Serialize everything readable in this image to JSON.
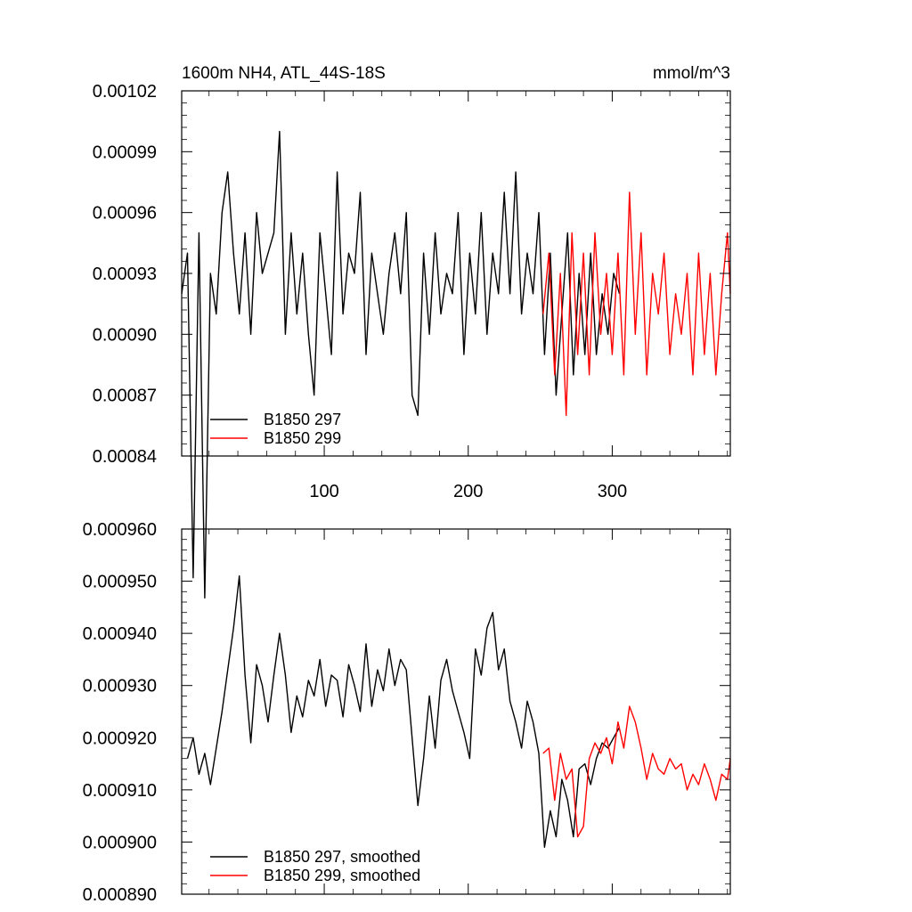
{
  "chart_data": [
    {
      "type": "line",
      "title": "1600m NH4, ATL_44S-18S",
      "units": "mmol/m^3",
      "xlim": [
        1,
        382
      ],
      "ylim": [
        0.00084,
        0.00102
      ],
      "xticks": [
        100,
        200,
        300
      ],
      "xtick_labels": [
        "100",
        "200",
        "300"
      ],
      "yticks": [
        0.00084,
        0.00087,
        0.0009,
        0.00093,
        0.00096,
        0.00099,
        0.00102
      ],
      "ytick_labels": [
        "0.00084",
        "0.00087",
        "0.00090",
        "0.00093",
        "0.00096",
        "0.00099",
        "0.00102"
      ],
      "grid": false,
      "legend_position": "bottom-left",
      "series": [
        {
          "name": "B1850 297",
          "color": "#000000",
          "x": [
            1,
            5,
            9,
            13,
            17,
            21,
            25,
            29,
            33,
            37,
            41,
            45,
            49,
            53,
            57,
            61,
            65,
            69,
            73,
            77,
            81,
            85,
            89,
            93,
            97,
            101,
            105,
            109,
            113,
            117,
            121,
            125,
            129,
            133,
            137,
            141,
            145,
            149,
            153,
            157,
            161,
            165,
            169,
            173,
            177,
            181,
            185,
            189,
            193,
            197,
            201,
            205,
            209,
            213,
            217,
            221,
            225,
            229,
            233,
            237,
            241,
            245,
            249,
            253,
            257,
            261,
            265,
            269,
            273,
            277,
            281,
            285,
            289,
            293,
            297,
            301,
            305
          ],
          "values": [
            0.00092,
            0.00094,
            0.00078,
            0.00095,
            0.00077,
            0.00093,
            0.00091,
            0.00096,
            0.00098,
            0.00094,
            0.00091,
            0.00095,
            0.0009,
            0.00096,
            0.00093,
            0.00094,
            0.00095,
            0.001,
            0.0009,
            0.00095,
            0.00091,
            0.00094,
            0.0009,
            0.00087,
            0.00095,
            0.00092,
            0.00089,
            0.00098,
            0.00091,
            0.00094,
            0.00093,
            0.00097,
            0.00089,
            0.00094,
            0.00092,
            0.0009,
            0.00093,
            0.00095,
            0.00092,
            0.00096,
            0.00087,
            0.00086,
            0.00094,
            0.0009,
            0.00095,
            0.00091,
            0.00093,
            0.00092,
            0.00096,
            0.00089,
            0.00094,
            0.00091,
            0.00096,
            0.0009,
            0.00094,
            0.00092,
            0.00097,
            0.00092,
            0.00098,
            0.00091,
            0.00094,
            0.00092,
            0.00096,
            0.00089,
            0.00094,
            0.00087,
            0.00091,
            0.00095,
            0.00088,
            0.00093,
            0.00089,
            0.00094,
            0.00089,
            0.00092,
            0.0009,
            0.00093,
            0.00092
          ]
        },
        {
          "name": "B1850 299",
          "color": "#ff0000",
          "x": [
            252,
            256,
            260,
            264,
            268,
            272,
            276,
            280,
            284,
            288,
            292,
            296,
            300,
            304,
            308,
            312,
            316,
            320,
            324,
            328,
            332,
            336,
            340,
            344,
            348,
            352,
            356,
            360,
            364,
            368,
            372,
            376,
            380,
            382
          ],
          "values": [
            0.00091,
            0.00094,
            0.00088,
            0.00093,
            0.00086,
            0.00095,
            0.00089,
            0.00094,
            0.00088,
            0.00095,
            0.0009,
            0.00093,
            0.00089,
            0.00094,
            0.00088,
            0.00097,
            0.0009,
            0.00095,
            0.00088,
            0.00093,
            0.00091,
            0.00094,
            0.00089,
            0.00092,
            0.0009,
            0.00093,
            0.00088,
            0.00094,
            0.00089,
            0.00093,
            0.00088,
            0.00092,
            0.00095,
            0.00092
          ]
        }
      ]
    },
    {
      "type": "line",
      "xlim": [
        1,
        382
      ],
      "ylim": [
        0.00089,
        0.00096
      ],
      "xticks": [
        100,
        200,
        300
      ],
      "yticks": [
        0.00089,
        0.0009,
        0.00091,
        0.00092,
        0.00093,
        0.00094,
        0.00095,
        0.00096
      ],
      "ytick_labels": [
        "0.000890",
        "0.000900",
        "0.000910",
        "0.000920",
        "0.000930",
        "0.000940",
        "0.000950",
        "0.000960"
      ],
      "grid": false,
      "legend_position": "bottom-left",
      "series": [
        {
          "name": "B1850 297, smoothed",
          "color": "#000000",
          "x": [
            5,
            9,
            13,
            17,
            21,
            25,
            29,
            33,
            37,
            41,
            45,
            49,
            53,
            57,
            61,
            65,
            69,
            73,
            77,
            81,
            85,
            89,
            93,
            97,
            101,
            105,
            109,
            113,
            117,
            121,
            125,
            129,
            133,
            137,
            141,
            145,
            149,
            153,
            157,
            161,
            165,
            169,
            173,
            177,
            181,
            185,
            189,
            193,
            197,
            201,
            205,
            209,
            213,
            217,
            221,
            225,
            229,
            233,
            237,
            241,
            245,
            249,
            253,
            257,
            261,
            265,
            269,
            273,
            277,
            281,
            285,
            289,
            293,
            297,
            301,
            305
          ],
          "values": [
            0.000916,
            0.00092,
            0.000913,
            0.000917,
            0.000911,
            0.000918,
            0.000925,
            0.000933,
            0.000941,
            0.000951,
            0.000932,
            0.000919,
            0.000934,
            0.00093,
            0.000923,
            0.000932,
            0.00094,
            0.000932,
            0.000921,
            0.000928,
            0.000924,
            0.000931,
            0.000928,
            0.000935,
            0.000926,
            0.000932,
            0.000931,
            0.000924,
            0.000934,
            0.00093,
            0.000925,
            0.000938,
            0.000926,
            0.000933,
            0.000929,
            0.000937,
            0.00093,
            0.000935,
            0.000933,
            0.00092,
            0.000907,
            0.000916,
            0.000928,
            0.000918,
            0.000931,
            0.000935,
            0.000929,
            0.000925,
            0.000921,
            0.000916,
            0.000937,
            0.000932,
            0.000941,
            0.000944,
            0.000933,
            0.000937,
            0.000927,
            0.000923,
            0.000918,
            0.000927,
            0.000923,
            0.000917,
            0.000899,
            0.000906,
            0.000901,
            0.000912,
            0.000908,
            0.000901,
            0.000914,
            0.000915,
            0.000911,
            0.000916,
            0.000919,
            0.000918,
            0.00092,
            0.000922
          ]
        },
        {
          "name": "B1850 299, smoothed",
          "color": "#ff0000",
          "x": [
            252,
            256,
            260,
            264,
            268,
            272,
            276,
            280,
            284,
            288,
            292,
            296,
            300,
            304,
            308,
            312,
            316,
            320,
            324,
            328,
            332,
            336,
            340,
            344,
            348,
            352,
            356,
            360,
            364,
            368,
            372,
            376,
            380,
            382
          ],
          "values": [
            0.000917,
            0.000918,
            0.000908,
            0.000917,
            0.000912,
            0.000914,
            0.000901,
            0.000903,
            0.000916,
            0.000919,
            0.000917,
            0.00092,
            0.000915,
            0.000923,
            0.000918,
            0.000926,
            0.000923,
            0.000918,
            0.000912,
            0.000917,
            0.000914,
            0.000913,
            0.000916,
            0.000914,
            0.000915,
            0.00091,
            0.000913,
            0.000911,
            0.000915,
            0.000912,
            0.000908,
            0.000913,
            0.000912,
            0.000916
          ]
        }
      ]
    }
  ]
}
